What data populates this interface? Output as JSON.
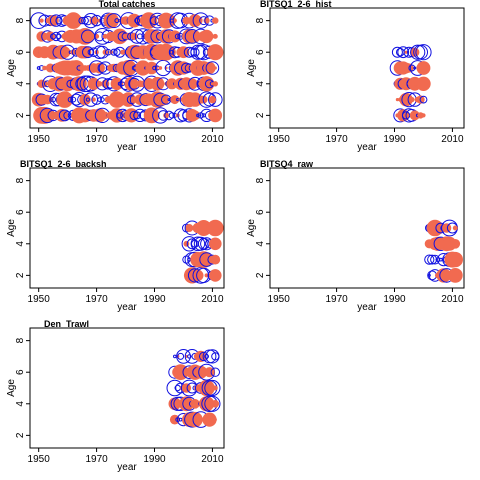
{
  "colors": {
    "positive": "#f16a50",
    "negative": "#1010e0",
    "axis": "#000000"
  },
  "chart_data": [
    {
      "type": "scatter",
      "title": "Total catches",
      "xlabel": "year",
      "ylabel": "Age",
      "xlim": [
        1947,
        2014
      ],
      "ylim": [
        1.2,
        8.8
      ],
      "xticks": [
        1950,
        1970,
        1990,
        2010
      ],
      "yticks": [
        2,
        4,
        6,
        8
      ],
      "grid": false,
      "years": [
        1950,
        2011
      ],
      "ages": [
        2,
        3,
        4,
        5,
        6,
        7,
        8
      ]
    },
    {
      "type": "scatter",
      "title": "BITSQ1_2-6_hist",
      "xlabel": "year",
      "ylabel": "Age",
      "xlim": [
        1947,
        2014
      ],
      "ylim": [
        1.2,
        8.8
      ],
      "xticks": [
        1950,
        1970,
        1990,
        2010
      ],
      "yticks": [
        2,
        4,
        6,
        8
      ],
      "grid": false,
      "years": [
        1991,
        2000
      ],
      "ages": [
        2,
        3,
        4,
        5,
        6
      ]
    },
    {
      "type": "scatter",
      "title": "BITSQ1_2-6_backsh",
      "xlabel": "year",
      "ylabel": "Age",
      "xlim": [
        1947,
        2014
      ],
      "ylim": [
        1.2,
        8.8
      ],
      "xticks": [
        1950,
        1970,
        1990,
        2010
      ],
      "yticks": [
        2,
        4,
        6,
        8
      ],
      "grid": false,
      "years": [
        2001,
        2011
      ],
      "ages": [
        2,
        3,
        4,
        5
      ]
    },
    {
      "type": "scatter",
      "title": "BITSQ4_raw",
      "xlabel": "year",
      "ylabel": "Age",
      "xlim": [
        1947,
        2014
      ],
      "ylim": [
        1.2,
        8.8
      ],
      "xticks": [
        1950,
        1970,
        1990,
        2010
      ],
      "yticks": [
        2,
        4,
        6,
        8
      ],
      "grid": false,
      "years": [
        2002,
        2011
      ],
      "ages": [
        2,
        3,
        4,
        5
      ]
    },
    {
      "type": "scatter",
      "title": "Den_Trawl",
      "xlabel": "year",
      "ylabel": "Age",
      "xlim": [
        1947,
        2014
      ],
      "ylim": [
        1.2,
        8.8
      ],
      "xticks": [
        1950,
        1970,
        1990,
        2010
      ],
      "yticks": [
        2,
        4,
        6,
        8
      ],
      "grid": false,
      "years": [
        1997,
        2011
      ],
      "ages": [
        3,
        4,
        5,
        6,
        7
      ]
    }
  ]
}
